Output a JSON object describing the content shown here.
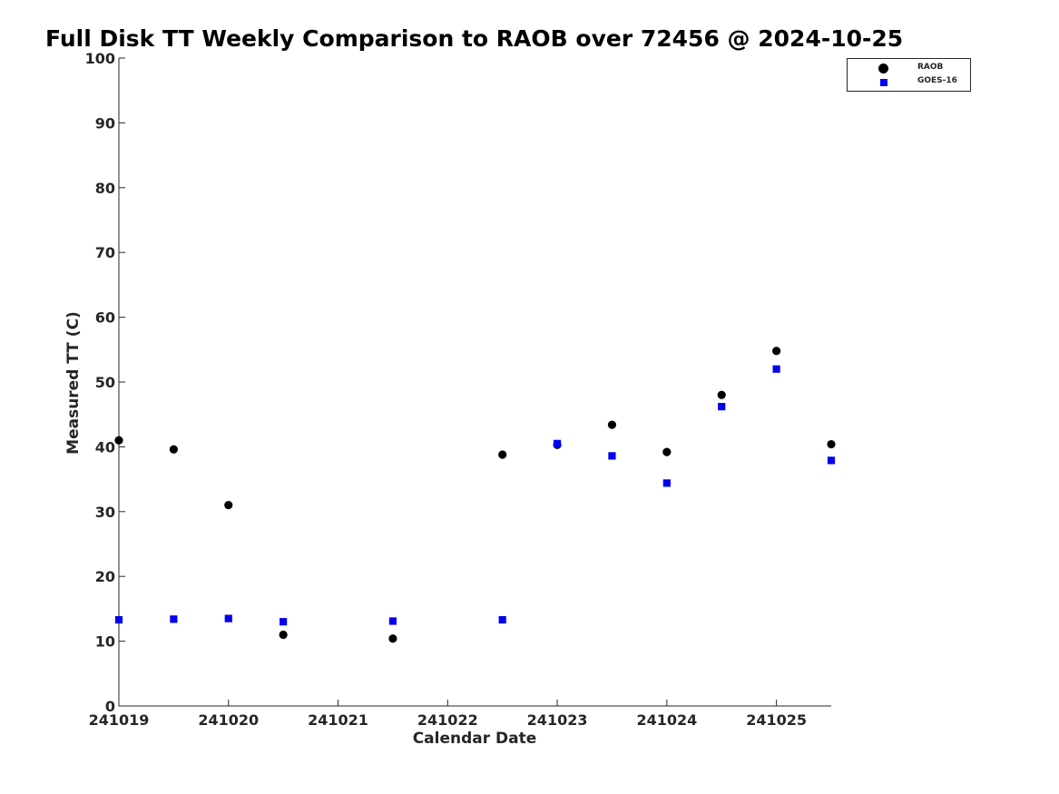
{
  "chart_data": {
    "type": "scatter",
    "title": "Full Disk TT Weekly Comparison to RAOB over 72456 @ 2024-10-25",
    "xlabel": "Calendar Date",
    "ylabel": "Measured TT (C)",
    "x_tick_labels": [
      "241019",
      "241020",
      "241021",
      "241022",
      "241023",
      "241024",
      "241025"
    ],
    "y_tick_labels": [
      "0",
      "10",
      "20",
      "30",
      "40",
      "50",
      "60",
      "70",
      "80",
      "90",
      "100"
    ],
    "ylim": [
      0,
      100
    ],
    "xlim": [
      "241019",
      "241025 12Z"
    ],
    "grid": false,
    "legend_position": "top-right",
    "series": [
      {
        "name": "RAOB",
        "marker": "circle",
        "color": "#000000",
        "points": [
          {
            "x": "241019 00Z",
            "y": 41.0
          },
          {
            "x": "241019 12Z",
            "y": 39.6
          },
          {
            "x": "241020 00Z",
            "y": 31.0
          },
          {
            "x": "241020 12Z",
            "y": 11.0
          },
          {
            "x": "241021 12Z",
            "y": 10.4
          },
          {
            "x": "241022 12Z",
            "y": 38.8
          },
          {
            "x": "241023 00Z",
            "y": 40.3
          },
          {
            "x": "241023 12Z",
            "y": 43.4
          },
          {
            "x": "241024 00Z",
            "y": 39.2
          },
          {
            "x": "241024 12Z",
            "y": 48.0
          },
          {
            "x": "241025 00Z",
            "y": 54.8
          },
          {
            "x": "241025 12Z",
            "y": 40.4
          }
        ]
      },
      {
        "name": "GOES-16",
        "marker": "square",
        "color": "#0000ee",
        "points": [
          {
            "x": "241019 00Z",
            "y": 13.3
          },
          {
            "x": "241019 12Z",
            "y": 13.4
          },
          {
            "x": "241020 00Z",
            "y": 13.5
          },
          {
            "x": "241020 12Z",
            "y": 13.0
          },
          {
            "x": "241021 12Z",
            "y": 13.1
          },
          {
            "x": "241022 12Z",
            "y": 13.3
          },
          {
            "x": "241023 00Z",
            "y": 40.5
          },
          {
            "x": "241023 12Z",
            "y": 38.6
          },
          {
            "x": "241024 00Z",
            "y": 34.4
          },
          {
            "x": "241024 12Z",
            "y": 46.2
          },
          {
            "x": "241025 00Z",
            "y": 52.0
          },
          {
            "x": "241025 12Z",
            "y": 37.9
          }
        ]
      }
    ]
  }
}
